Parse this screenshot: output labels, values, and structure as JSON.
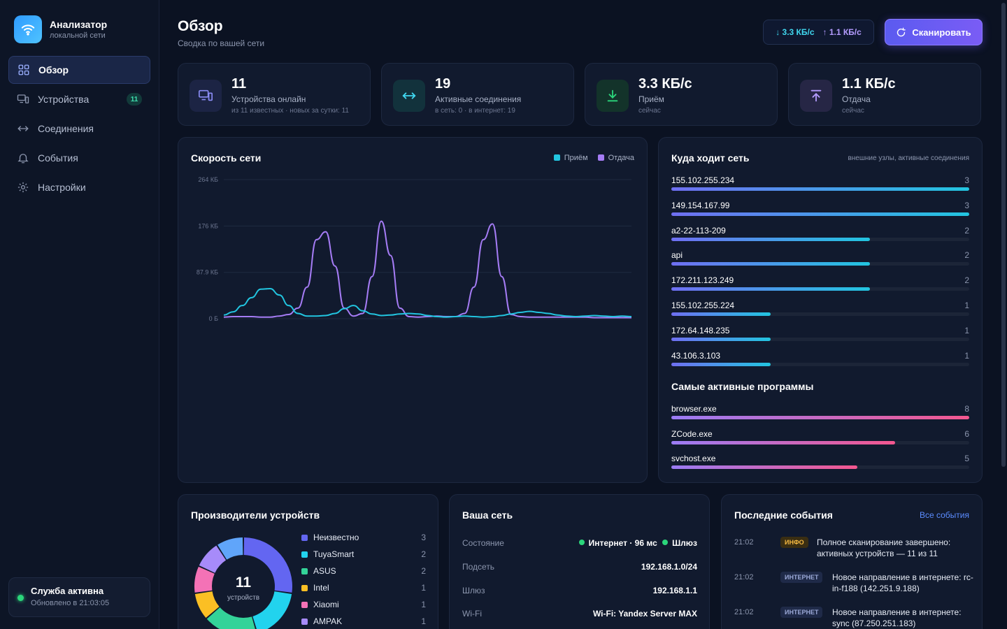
{
  "brand": {
    "title": "Анализатор",
    "subtitle": "локальной сети"
  },
  "nav": {
    "items": [
      {
        "label": "Обзор",
        "icon": "grid-icon"
      },
      {
        "label": "Устройства",
        "icon": "devices-icon",
        "badge": "11"
      },
      {
        "label": "Соединения",
        "icon": "arrows-icon"
      },
      {
        "label": "События",
        "icon": "bell-icon"
      },
      {
        "label": "Настройки",
        "icon": "gear-icon"
      }
    ]
  },
  "service": {
    "title": "Служба активна",
    "updated": "Обновлено в 21:03:05"
  },
  "header": {
    "title": "Обзор",
    "subtitle": "Сводка по вашей сети",
    "down": "↓ 3.3 КБ/с",
    "up": "↑ 1.1 КБ/с",
    "scan_label": "Сканировать"
  },
  "stats": [
    {
      "value": "11",
      "label": "Устройства онлайн",
      "sub": "из 11 известных · новых за сутки: 11",
      "icon": "devices-icon",
      "color": "#8a8cf5"
    },
    {
      "value": "19",
      "label": "Активные соединения",
      "sub": "в сеть: 0 · в интернет: 19",
      "icon": "arrows-icon",
      "color": "#40d8f0"
    },
    {
      "value": "3.3 КБ/с",
      "label": "Приём",
      "sub": "сейчас",
      "icon": "download-icon",
      "color": "#2bd67b"
    },
    {
      "value": "1.1 КБ/с",
      "label": "Отдача",
      "sub": "сейчас",
      "icon": "upload-icon",
      "color": "#b49cff"
    }
  ],
  "speed_chart": {
    "title": "Скорость сети",
    "legend_rx": "Приём",
    "legend_tx": "Отдача",
    "rx_color": "#22c5e0",
    "tx_color": "#a57cf5"
  },
  "chart_data": {
    "type": "line",
    "ylim": [
      0,
      264
    ],
    "y_ticks": [
      "264 КБ",
      "176 КБ",
      "87.9 КБ",
      "0 Б"
    ],
    "y_tick_values": [
      264,
      176,
      87.9,
      0
    ],
    "series": [
      {
        "name": "Приём",
        "values": [
          7,
          13,
          25,
          40,
          56,
          57,
          45,
          25,
          10,
          5,
          5,
          6,
          10,
          19,
          25,
          15,
          9,
          6,
          7,
          9,
          10,
          9,
          6,
          4,
          3,
          4,
          5,
          4,
          3,
          4,
          6,
          9,
          12,
          14,
          12,
          10,
          7,
          5,
          4,
          5,
          6,
          5,
          4,
          5,
          4
        ]
      },
      {
        "name": "Отдача",
        "values": [
          3,
          4,
          4,
          4,
          3,
          3,
          5,
          8,
          20,
          60,
          150,
          165,
          100,
          20,
          5,
          10,
          80,
          185,
          120,
          20,
          4,
          3,
          4,
          5,
          4,
          4,
          10,
          60,
          150,
          180,
          80,
          8,
          4,
          3,
          3,
          3,
          3,
          3,
          3,
          3,
          2,
          2,
          2,
          2,
          2
        ]
      }
    ]
  },
  "destinations": {
    "title": "Куда ходит сеть",
    "hint": "внешние узлы, активные соединения",
    "items": [
      {
        "label": "155.102.255.234",
        "count": 3
      },
      {
        "label": "149.154.167.99",
        "count": 3
      },
      {
        "label": "a2-22-113-209",
        "count": 2
      },
      {
        "label": "api",
        "count": 2
      },
      {
        "label": "172.211.123.249",
        "count": 2
      },
      {
        "label": "155.102.255.224",
        "count": 1
      },
      {
        "label": "172.64.148.235",
        "count": 1
      },
      {
        "label": "43.106.3.103",
        "count": 1
      }
    ],
    "max": 3
  },
  "programs": {
    "title": "Самые активные программы",
    "items": [
      {
        "label": "browser.exe",
        "count": 8
      },
      {
        "label": "ZCode.exe",
        "count": 6
      },
      {
        "label": "svchost.exe",
        "count": 5
      }
    ],
    "max": 8
  },
  "vendors": {
    "title": "Производители устройств",
    "center_value": "11",
    "center_label": "устройств",
    "items": [
      {
        "name": "Неизвестно",
        "count": 3,
        "color": "#6366f1"
      },
      {
        "name": "TuyaSmart",
        "count": 2,
        "color": "#22d3ee"
      },
      {
        "name": "ASUS",
        "count": 2,
        "color": "#34d399"
      },
      {
        "name": "Intel",
        "count": 1,
        "color": "#fbbf24"
      },
      {
        "name": "Xiaomi",
        "count": 1,
        "color": "#f472b6"
      },
      {
        "name": "AMPAK",
        "count": 1,
        "color": "#a78bfa"
      },
      {
        "name": "",
        "count": 1,
        "color": "#60a5fa"
      }
    ]
  },
  "network": {
    "title": "Ваша сеть",
    "rows": [
      {
        "key": "Состояние",
        "internet": "Интернет · 96 мс",
        "gateway": "Шлюз"
      },
      {
        "key": "Подсеть",
        "value": "192.168.1.0/24"
      },
      {
        "key": "Шлюз",
        "value": "192.168.1.1"
      },
      {
        "key": "Wi-Fi",
        "value": "Wi-Fi: Yandex Server MAX"
      }
    ]
  },
  "events": {
    "title": "Последние события",
    "all_link": "Все события",
    "items": [
      {
        "time": "21:02",
        "tag": "ИНФО",
        "tag_color": "#f5b942",
        "tag_bg": "#3a2e12",
        "text": "Полное сканирование завершено: активных устройств — 11 из 11"
      },
      {
        "time": "21:02",
        "tag": "ИНТЕРНЕТ",
        "tag_color": "#9aa8d6",
        "tag_bg": "#1f2a48",
        "text": "Новое направление в интернете: rc-in-f188 (142.251.9.188)"
      },
      {
        "time": "21:02",
        "tag": "ИНТЕРНЕТ",
        "tag_color": "#9aa8d6",
        "tag_bg": "#1f2a48",
        "text": "Новое направление в интернете: sync (87.250.251.183)"
      }
    ]
  }
}
